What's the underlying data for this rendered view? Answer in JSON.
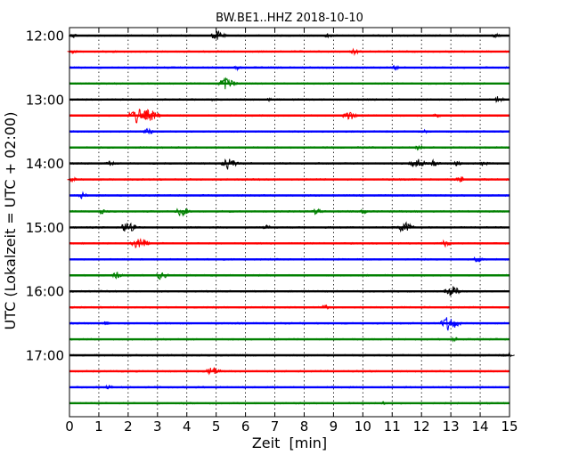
{
  "chart_data": {
    "type": "line",
    "title": "BW.BE1..HHZ 2018-10-10",
    "xlabel": "Zeit  [min]",
    "ylabel": "UTC (Lokalzeit = UTC + 02:00)",
    "xlim": [
      0,
      15
    ],
    "x_ticks": [
      0,
      1,
      2,
      3,
      4,
      5,
      6,
      7,
      8,
      9,
      10,
      11,
      12,
      13,
      14,
      15
    ],
    "y_tick_labels": [
      "12:00",
      "13:00",
      "14:00",
      "15:00",
      "16:00",
      "17:00"
    ],
    "grid": "vertical dotted",
    "trace_colors": [
      "#000000",
      "#ff0000",
      "#0000ff",
      "#008000"
    ],
    "traces": [
      {
        "start": "12:00",
        "events": [
          [
            0.15,
            0.3
          ],
          [
            5.0,
            0.6
          ],
          [
            8.8,
            0.3
          ],
          [
            14.5,
            0.3
          ]
        ]
      },
      {
        "start": "12:15",
        "events": [
          [
            0.1,
            0.3
          ],
          [
            9.7,
            0.4
          ]
        ]
      },
      {
        "start": "12:30",
        "events": [
          [
            5.7,
            0.3
          ],
          [
            11.1,
            0.3
          ]
        ]
      },
      {
        "start": "12:45",
        "events": [
          [
            5.3,
            0.8
          ]
        ]
      },
      {
        "start": "13:00",
        "events": [
          [
            4.9,
            0.2
          ],
          [
            6.8,
            0.2
          ],
          [
            14.6,
            0.4
          ]
        ]
      },
      {
        "start": "13:15",
        "events": [
          [
            2.3,
            1.0
          ],
          [
            2.7,
            0.8
          ],
          [
            9.5,
            0.6
          ],
          [
            12.5,
            0.3
          ]
        ]
      },
      {
        "start": "13:30",
        "events": [
          [
            2.65,
            0.4
          ],
          [
            12.1,
            0.2
          ]
        ]
      },
      {
        "start": "13:45",
        "events": [
          [
            11.9,
            0.3
          ]
        ]
      },
      {
        "start": "14:00",
        "events": [
          [
            1.35,
            0.3
          ],
          [
            5.4,
            0.7
          ],
          [
            11.8,
            0.7
          ],
          [
            12.4,
            0.4
          ],
          [
            13.2,
            0.3
          ],
          [
            14.1,
            0.3
          ]
        ]
      },
      {
        "start": "14:15",
        "events": [
          [
            0.1,
            0.3
          ],
          [
            13.3,
            0.4
          ]
        ]
      },
      {
        "start": "14:30",
        "events": [
          [
            0.4,
            0.4
          ]
        ]
      },
      {
        "start": "14:45",
        "events": [
          [
            1.1,
            0.3
          ],
          [
            3.8,
            0.6
          ],
          [
            8.4,
            0.4
          ],
          [
            10.0,
            0.3
          ]
        ]
      },
      {
        "start": "15:00",
        "events": [
          [
            1.95,
            0.7
          ],
          [
            6.7,
            0.3
          ],
          [
            11.4,
            0.7
          ]
        ]
      },
      {
        "start": "15:15",
        "events": [
          [
            2.35,
            0.8
          ],
          [
            12.8,
            0.4
          ]
        ]
      },
      {
        "start": "15:30",
        "events": [
          [
            13.9,
            0.4
          ]
        ]
      },
      {
        "start": "15:45",
        "events": [
          [
            1.6,
            0.4
          ],
          [
            3.1,
            0.5
          ]
        ]
      },
      {
        "start": "16:00",
        "events": [
          [
            7.5,
            0.2
          ],
          [
            13.0,
            0.7
          ]
        ]
      },
      {
        "start": "16:15",
        "events": [
          [
            8.7,
            0.3
          ]
        ]
      },
      {
        "start": "16:30",
        "events": [
          [
            1.2,
            0.3
          ],
          [
            11.2,
            0.2
          ],
          [
            12.9,
            0.9
          ]
        ]
      },
      {
        "start": "16:45",
        "events": [
          [
            13.1,
            0.3
          ]
        ]
      },
      {
        "start": "17:00",
        "events": [
          [
            14.9,
            0.3
          ]
        ]
      },
      {
        "start": "17:15",
        "events": [
          [
            4.85,
            0.6
          ]
        ]
      },
      {
        "start": "17:30",
        "events": [
          [
            1.3,
            0.3
          ]
        ]
      },
      {
        "start": "17:45",
        "events": [
          [
            10.7,
            0.2
          ]
        ]
      }
    ]
  }
}
